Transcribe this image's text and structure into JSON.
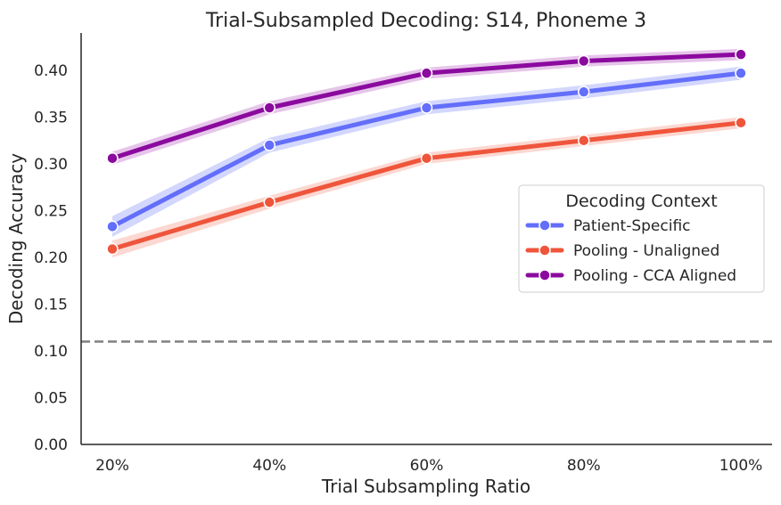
{
  "chart_data": {
    "type": "line",
    "title": "Trial-Subsampled Decoding: S14, Phoneme 3",
    "xlabel": "Trial Subsampling Ratio",
    "ylabel": "Decoding Accuracy",
    "categories": [
      "20%",
      "40%",
      "60%",
      "80%",
      "100%"
    ],
    "ylim": [
      0,
      0.44
    ],
    "yticks": [
      "0.00",
      "0.05",
      "0.10",
      "0.15",
      "0.20",
      "0.25",
      "0.30",
      "0.35",
      "0.40"
    ],
    "grid": false,
    "legend": {
      "title": "Decoding Context",
      "placement": "right"
    },
    "reference_line": {
      "y": 0.11,
      "style": "dashed",
      "color": "#808080"
    },
    "series": [
      {
        "name": "Patient-Specific",
        "color": "#636efa",
        "band_color": "#9ea6fb",
        "values": [
          0.233,
          0.32,
          0.36,
          0.377,
          0.397
        ],
        "ci": [
          0.011,
          0.008,
          0.007,
          0.007,
          0.007
        ]
      },
      {
        "name": "Pooling - Unaligned",
        "color": "#ef553b",
        "band_color": "#f6a898",
        "values": [
          0.209,
          0.259,
          0.306,
          0.325,
          0.344
        ],
        "ci": [
          0.009,
          0.007,
          0.006,
          0.006,
          0.006
        ]
      },
      {
        "name": "Pooling - CCA Aligned",
        "color": "#8b0a9e",
        "band_color": "#c77fd0",
        "values": [
          0.306,
          0.36,
          0.397,
          0.41,
          0.417
        ],
        "ci": [
          0.007,
          0.007,
          0.006,
          0.006,
          0.006
        ]
      }
    ]
  }
}
